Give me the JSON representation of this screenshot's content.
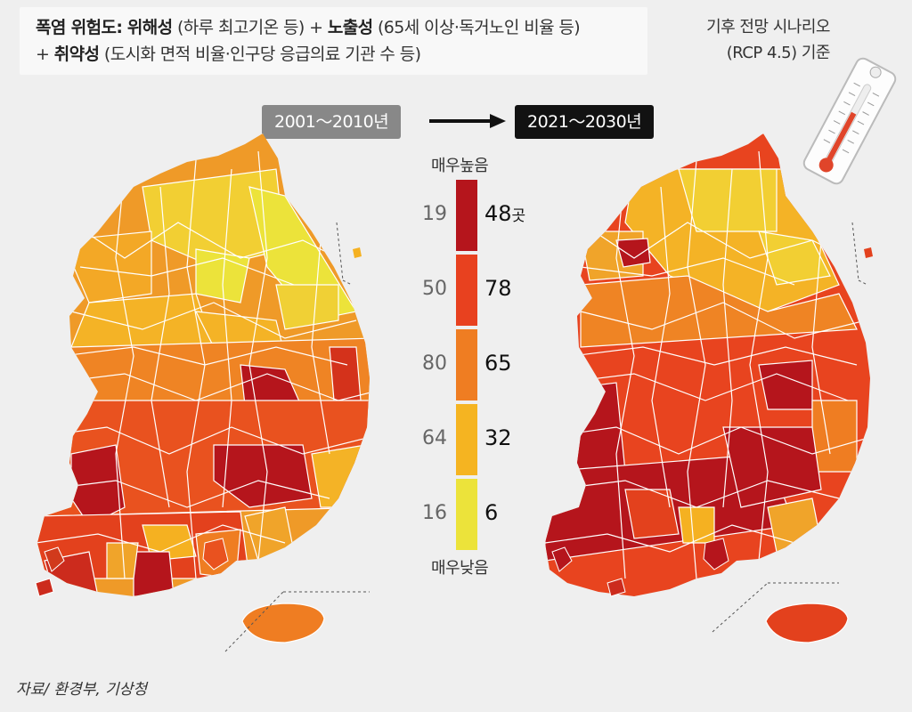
{
  "header": {
    "line1_title": "폭염 위험도:",
    "line1_b1": "위해성",
    "line1_t1": "(하루 최고기온 등) +",
    "line1_b2": "노출성",
    "line1_t2": "(65세 이상·독거노인 비율 등)",
    "line2_prefix": "+",
    "line2_b": "취약성",
    "line2_t": "(도시화 면적 비율·인구당 응급의료 기관 수 등)"
  },
  "scenario": {
    "line1": "기후 전망 시나리오",
    "line2": "(RCP 4.5) 기준"
  },
  "periods": {
    "before": "2001～2010년",
    "after": "2021～2030년"
  },
  "legend": {
    "top_label": "매우높음",
    "bottom_label": "매우낮음",
    "unit": "곳",
    "classes": [
      {
        "color": "#b5151c",
        "before": "19",
        "after": "48"
      },
      {
        "color": "#e8411f",
        "before": "50",
        "after": "78"
      },
      {
        "color": "#ef7d22",
        "before": "80",
        "after": "65"
      },
      {
        "color": "#f5b421",
        "before": "64",
        "after": "32"
      },
      {
        "color": "#ece33a",
        "before": "16",
        "after": "6"
      }
    ]
  },
  "source": "자료/ 환경부, 기상청"
}
